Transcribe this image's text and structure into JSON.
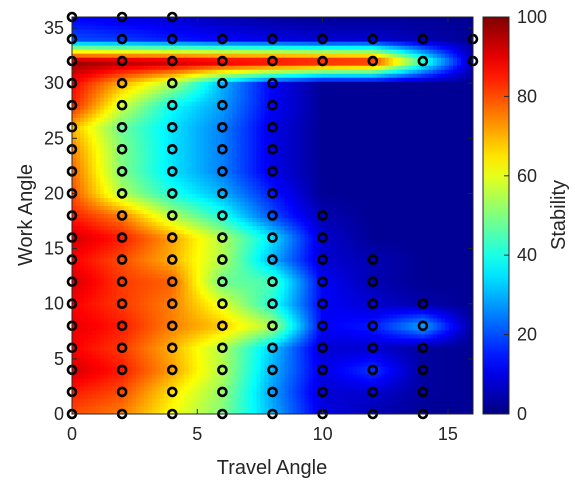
{
  "chart_data": {
    "type": "heatmap",
    "xlabel": "Travel Angle",
    "ylabel": "Work Angle",
    "colorbar_label": "Stability",
    "xlim": [
      0,
      16
    ],
    "ylim": [
      0,
      36
    ],
    "clim": [
      0,
      100
    ],
    "x_ticks": [
      0,
      5,
      10,
      15
    ],
    "y_ticks": [
      0,
      5,
      10,
      15,
      20,
      25,
      30,
      35
    ],
    "colorbar_ticks": [
      0,
      20,
      40,
      60,
      80,
      100
    ],
    "colormap": "jet",
    "grid": false,
    "x_values": [
      0,
      2,
      4,
      6,
      8,
      10,
      12,
      14,
      16
    ],
    "y_values": [
      0,
      2,
      4,
      6,
      8,
      10,
      12,
      14,
      16,
      18,
      20,
      22,
      24,
      26,
      28,
      30,
      32,
      34,
      36
    ],
    "z": [
      [
        80,
        75,
        62,
        50,
        30,
        10,
        5,
        2,
        2
      ],
      [
        85,
        80,
        65,
        52,
        28,
        8,
        8,
        3,
        2
      ],
      [
        92,
        85,
        72,
        55,
        30,
        10,
        18,
        3,
        2
      ],
      [
        88,
        82,
        70,
        55,
        32,
        8,
        8,
        3,
        2
      ],
      [
        90,
        85,
        75,
        68,
        55,
        12,
        15,
        30,
        2
      ],
      [
        88,
        82,
        75,
        60,
        40,
        12,
        8,
        4,
        2
      ],
      [
        92,
        82,
        78,
        48,
        45,
        12,
        5,
        2,
        2
      ],
      [
        88,
        80,
        70,
        55,
        30,
        8,
        5,
        2,
        2
      ],
      [
        92,
        85,
        72,
        55,
        35,
        8,
        2,
        2,
        2
      ],
      [
        85,
        75,
        55,
        40,
        20,
        5,
        2,
        2,
        2
      ],
      [
        80,
        55,
        40,
        30,
        15,
        2,
        2,
        2,
        2
      ],
      [
        78,
        50,
        35,
        25,
        10,
        2,
        2,
        2,
        2
      ],
      [
        75,
        50,
        35,
        25,
        10,
        2,
        2,
        2,
        2
      ],
      [
        70,
        48,
        35,
        25,
        10,
        2,
        2,
        2,
        2
      ],
      [
        85,
        58,
        38,
        28,
        12,
        2,
        2,
        2,
        2
      ],
      [
        88,
        70,
        55,
        30,
        12,
        2,
        2,
        2,
        2
      ],
      [
        98,
        96,
        95,
        93,
        92,
        90,
        88,
        45,
        5
      ],
      [
        20,
        18,
        15,
        12,
        10,
        8,
        8,
        5,
        2
      ],
      [
        12,
        10,
        8,
        5,
        3,
        2,
        2,
        2,
        2
      ]
    ],
    "sample_points": [
      [
        0,
        0
      ],
      [
        2,
        0
      ],
      [
        4,
        0
      ],
      [
        6,
        0
      ],
      [
        8,
        0
      ],
      [
        10,
        0
      ],
      [
        12,
        0
      ],
      [
        14,
        0
      ],
      [
        0,
        2
      ],
      [
        2,
        2
      ],
      [
        4,
        2
      ],
      [
        6,
        2
      ],
      [
        8,
        2
      ],
      [
        10,
        2
      ],
      [
        12,
        2
      ],
      [
        14,
        2
      ],
      [
        0,
        4
      ],
      [
        2,
        4
      ],
      [
        4,
        4
      ],
      [
        6,
        4
      ],
      [
        8,
        4
      ],
      [
        10,
        4
      ],
      [
        12,
        4
      ],
      [
        14,
        4
      ],
      [
        0,
        6
      ],
      [
        2,
        6
      ],
      [
        4,
        6
      ],
      [
        6,
        6
      ],
      [
        8,
        6
      ],
      [
        10,
        6
      ],
      [
        12,
        6
      ],
      [
        14,
        6
      ],
      [
        0,
        8
      ],
      [
        2,
        8
      ],
      [
        4,
        8
      ],
      [
        6,
        8
      ],
      [
        8,
        8
      ],
      [
        10,
        8
      ],
      [
        12,
        8
      ],
      [
        14,
        8
      ],
      [
        0,
        10
      ],
      [
        2,
        10
      ],
      [
        4,
        10
      ],
      [
        6,
        10
      ],
      [
        8,
        10
      ],
      [
        10,
        10
      ],
      [
        12,
        10
      ],
      [
        14,
        10
      ],
      [
        0,
        12
      ],
      [
        2,
        12
      ],
      [
        4,
        12
      ],
      [
        6,
        12
      ],
      [
        8,
        12
      ],
      [
        10,
        12
      ],
      [
        12,
        12
      ],
      [
        0,
        14
      ],
      [
        2,
        14
      ],
      [
        4,
        14
      ],
      [
        6,
        14
      ],
      [
        8,
        14
      ],
      [
        10,
        14
      ],
      [
        12,
        14
      ],
      [
        0,
        16
      ],
      [
        2,
        16
      ],
      [
        4,
        16
      ],
      [
        6,
        16
      ],
      [
        8,
        16
      ],
      [
        10,
        16
      ],
      [
        0,
        18
      ],
      [
        2,
        18
      ],
      [
        4,
        18
      ],
      [
        6,
        18
      ],
      [
        8,
        18
      ],
      [
        10,
        18
      ],
      [
        0,
        20
      ],
      [
        2,
        20
      ],
      [
        4,
        20
      ],
      [
        6,
        20
      ],
      [
        8,
        20
      ],
      [
        0,
        22
      ],
      [
        2,
        22
      ],
      [
        4,
        22
      ],
      [
        6,
        22
      ],
      [
        8,
        22
      ],
      [
        0,
        24
      ],
      [
        2,
        24
      ],
      [
        4,
        24
      ],
      [
        6,
        24
      ],
      [
        8,
        24
      ],
      [
        0,
        26
      ],
      [
        2,
        26
      ],
      [
        4,
        26
      ],
      [
        6,
        26
      ],
      [
        8,
        26
      ],
      [
        0,
        28
      ],
      [
        2,
        28
      ],
      [
        4,
        28
      ],
      [
        6,
        28
      ],
      [
        8,
        28
      ],
      [
        0,
        30
      ],
      [
        2,
        30
      ],
      [
        4,
        30
      ],
      [
        6,
        30
      ],
      [
        8,
        30
      ],
      [
        0,
        32
      ],
      [
        2,
        32
      ],
      [
        4,
        32
      ],
      [
        6,
        32
      ],
      [
        8,
        32
      ],
      [
        10,
        32
      ],
      [
        12,
        32
      ],
      [
        14,
        32
      ],
      [
        16,
        32
      ],
      [
        0,
        34
      ],
      [
        2,
        34
      ],
      [
        4,
        34
      ],
      [
        6,
        34
      ],
      [
        8,
        34
      ],
      [
        10,
        34
      ],
      [
        12,
        34
      ],
      [
        14,
        34
      ],
      [
        16,
        34
      ],
      [
        0,
        36
      ],
      [
        2,
        36
      ],
      [
        4,
        36
      ]
    ]
  }
}
